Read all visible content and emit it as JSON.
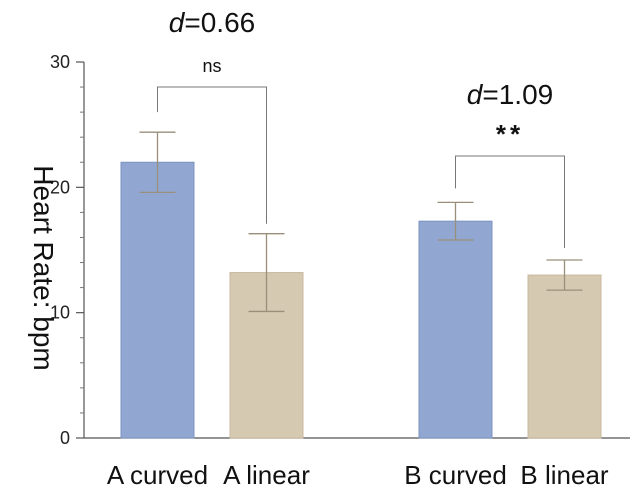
{
  "chart_data": {
    "type": "bar",
    "categories": [
      "A curved",
      "A linear",
      "B curved",
      "B linear"
    ],
    "values": [
      22.0,
      13.2,
      17.3,
      13.0
    ],
    "error": [
      [
        19.6,
        24.4
      ],
      [
        10.1,
        16.3
      ],
      [
        15.8,
        18.8
      ],
      [
        11.8,
        14.2
      ]
    ],
    "bar_colors": [
      "#91a7d2",
      "#d6c9b1",
      "#91a7d2",
      "#d6c9b1"
    ],
    "error_color": "#9a8f7a",
    "xlabel": "",
    "ylabel": "Heart Rate: bpm",
    "ylim": [
      0,
      30
    ],
    "yticks": [
      0,
      10,
      20,
      30
    ],
    "ytick_labels": [
      "0",
      "10",
      "20",
      "30"
    ],
    "grid": false,
    "comparisons": [
      {
        "between": [
          0,
          1
        ],
        "effect_prefix": "d",
        "effect_value": "=0.66",
        "significance": "ns"
      },
      {
        "between": [
          2,
          3
        ],
        "effect_prefix": "d",
        "effect_value": "=1.09",
        "significance": "**"
      }
    ]
  }
}
